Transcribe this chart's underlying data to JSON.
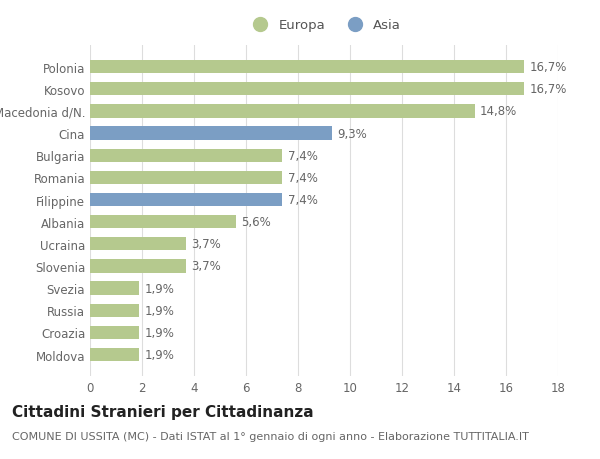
{
  "categories": [
    "Moldova",
    "Croazia",
    "Russia",
    "Svezia",
    "Slovenia",
    "Ucraina",
    "Albania",
    "Filippine",
    "Romania",
    "Bulgaria",
    "Cina",
    "Macedonia d/N.",
    "Kosovo",
    "Polonia"
  ],
  "values": [
    1.9,
    1.9,
    1.9,
    1.9,
    3.7,
    3.7,
    5.6,
    7.4,
    7.4,
    7.4,
    9.3,
    14.8,
    16.7,
    16.7
  ],
  "labels": [
    "1,9%",
    "1,9%",
    "1,9%",
    "1,9%",
    "3,7%",
    "3,7%",
    "5,6%",
    "7,4%",
    "7,4%",
    "7,4%",
    "9,3%",
    "14,8%",
    "16,7%",
    "16,7%"
  ],
  "colors": [
    "#b5c98e",
    "#b5c98e",
    "#b5c98e",
    "#b5c98e",
    "#b5c98e",
    "#b5c98e",
    "#b5c98e",
    "#7b9ec4",
    "#b5c98e",
    "#b5c98e",
    "#7b9ec4",
    "#b5c98e",
    "#b5c98e",
    "#b5c98e"
  ],
  "europa_color": "#b5c98e",
  "asia_color": "#7b9ec4",
  "xlim": [
    0,
    18
  ],
  "xticks": [
    0,
    2,
    4,
    6,
    8,
    10,
    12,
    14,
    16,
    18
  ],
  "title": "Cittadini Stranieri per Cittadinanza",
  "subtitle": "COMUNE DI USSITA (MC) - Dati ISTAT al 1° gennaio di ogni anno - Elaborazione TUTTITALIA.IT",
  "bg_color": "#ffffff",
  "grid_color": "#dddddd",
  "bar_height": 0.6,
  "label_fontsize": 8.5,
  "tick_fontsize": 8.5,
  "title_fontsize": 11,
  "subtitle_fontsize": 8
}
